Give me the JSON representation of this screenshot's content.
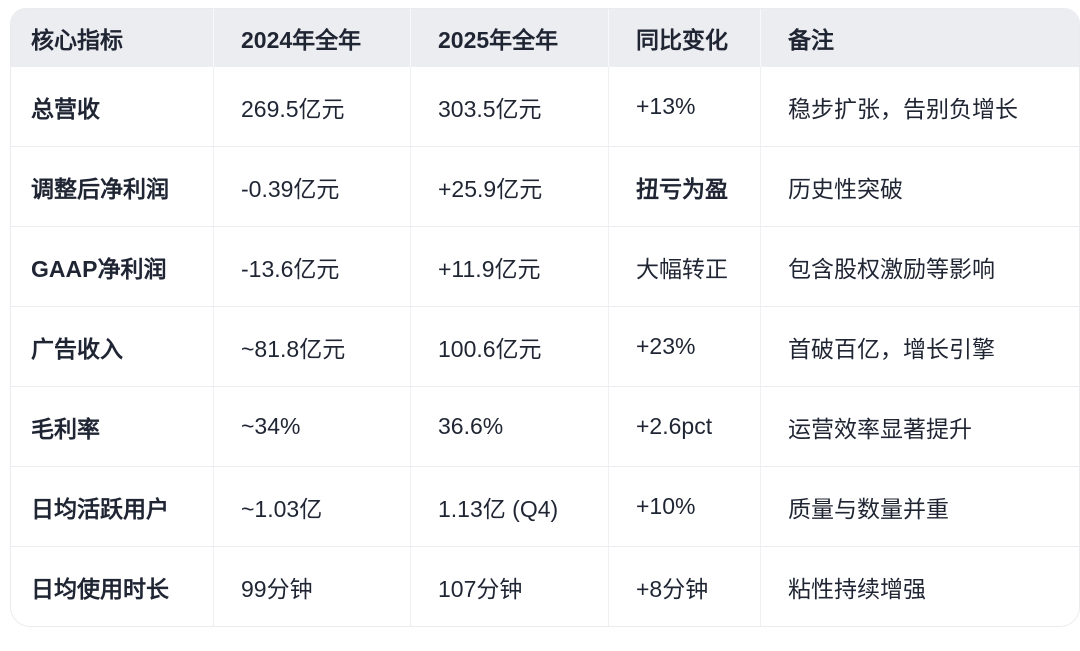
{
  "colors": {
    "header_bg": "#ECEDF0",
    "row_bg": "#FFFFFF",
    "border": "#E9EBEF",
    "text": "#1F2533"
  },
  "chart_data": {
    "type": "table",
    "columns": [
      "核心指标",
      "2024年全年",
      "2025年全年",
      "同比变化",
      "备注"
    ],
    "rows": [
      [
        "总营收",
        "269.5亿元",
        "303.5亿元",
        "+13%",
        "稳步扩张，告别负增长"
      ],
      [
        "调整后净利润",
        "-0.39亿元",
        "+25.9亿元",
        "扭亏为盈",
        "历史性突破"
      ],
      [
        "GAAP净利润",
        "-13.6亿元",
        "+11.9亿元",
        "大幅转正",
        "包含股权激励等影响"
      ],
      [
        "广告收入",
        "~81.8亿元",
        "100.6亿元",
        "+23%",
        "首破百亿，增长引擎"
      ],
      [
        "毛利率",
        "~34%",
        "36.6%",
        "+2.6pct",
        "运营效率显著提升"
      ],
      [
        "日均活跃用户",
        "~1.03亿",
        "1.13亿 (Q4)",
        "+10%",
        "质量与数量并重"
      ],
      [
        "日均使用时长",
        "99分钟",
        "107分钟",
        "+8分钟",
        "粘性持续增强"
      ]
    ]
  }
}
